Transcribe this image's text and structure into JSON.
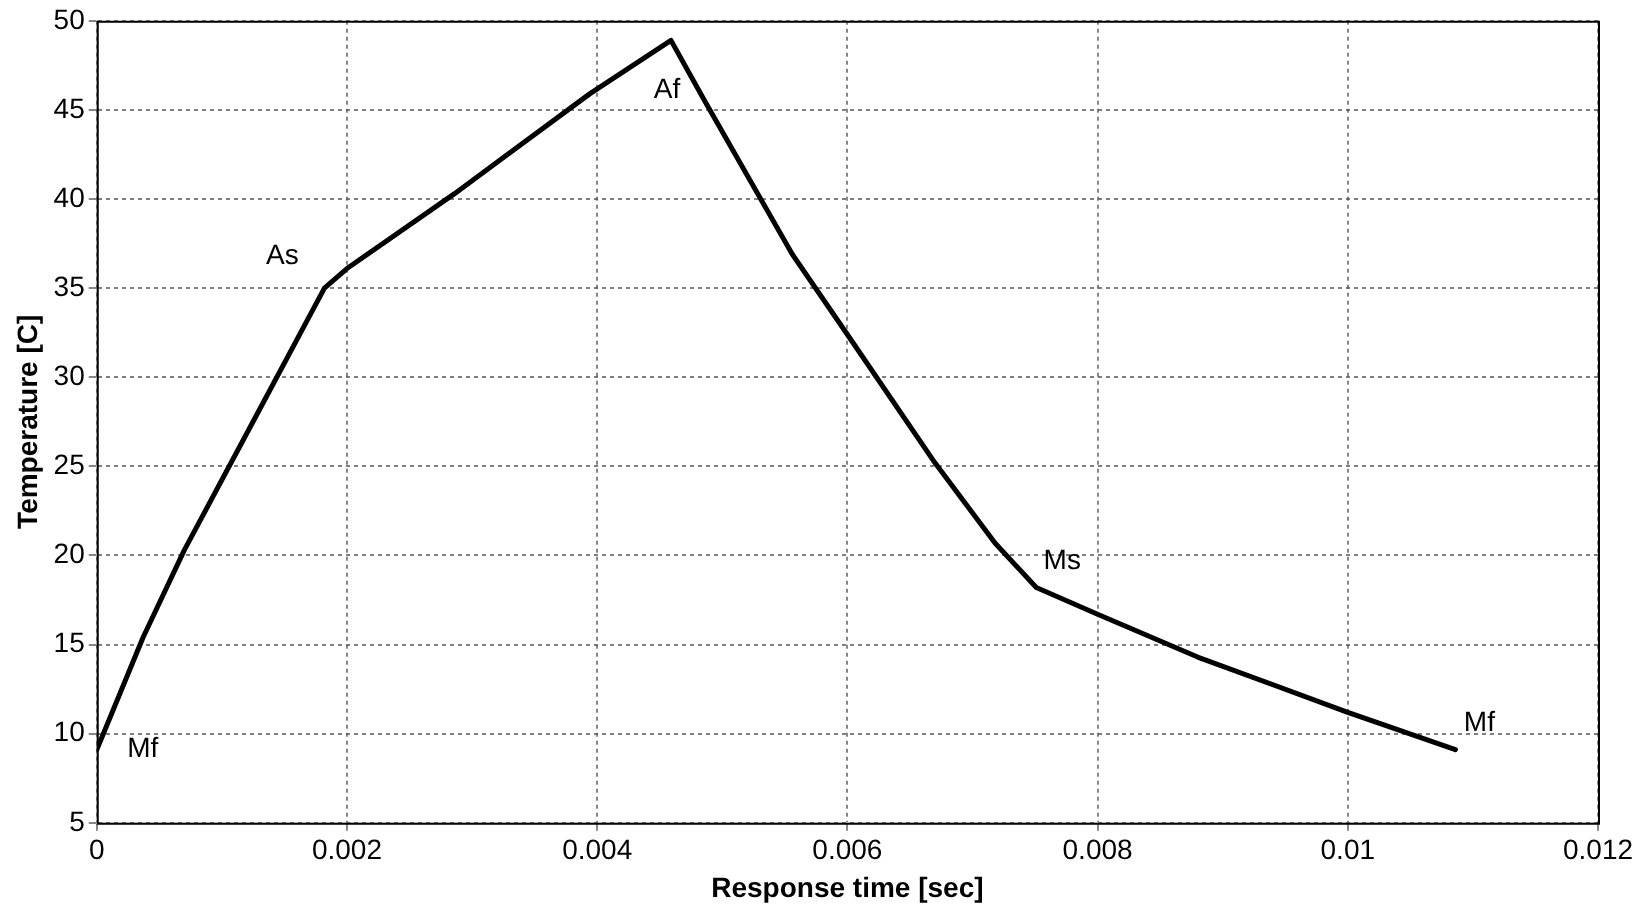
{
  "chart_data": {
    "type": "line",
    "xlabel": "Response time [sec]",
    "ylabel": "Temperature [C]",
    "x": [
      0,
      0.00037,
      0.0007,
      0.00182,
      0.002,
      0.00286,
      0.00394,
      0.00459,
      0.00486,
      0.00556,
      0.006,
      0.0067,
      0.00718,
      0.00751,
      0.008,
      0.0088,
      0.01,
      0.01086
    ],
    "series": [
      {
        "color": "#000000",
        "values": [
          9.1,
          15.4,
          20.3,
          35.0,
          36.1,
          40.3,
          45.9,
          48.9,
          45.5,
          36.9,
          32.4,
          25.2,
          20.7,
          18.2,
          16.7,
          14.3,
          11.2,
          9.1
        ]
      }
    ],
    "xlim": [
      0,
      0.012
    ],
    "xticks": [
      0,
      0.002,
      0.004,
      0.006,
      0.008,
      0.01,
      0.012
    ],
    "ylim": [
      5,
      50
    ],
    "yticks": [
      5,
      10,
      15,
      20,
      25,
      30,
      35,
      40,
      45,
      50
    ],
    "grid": true,
    "marker": "none",
    "line_style": "solid",
    "annotations": [
      {
        "text": "Mf",
        "x": 0,
        "y": 9.1
      },
      {
        "text": "As",
        "x": 0.00182,
        "y": 35.0
      },
      {
        "text": "Af",
        "x": 0.00459,
        "y": 48.9
      },
      {
        "text": "Ms",
        "x": 0.00751,
        "y": 18.2
      },
      {
        "text": "Mf",
        "x": 0.01086,
        "y": 9.1
      }
    ]
  }
}
